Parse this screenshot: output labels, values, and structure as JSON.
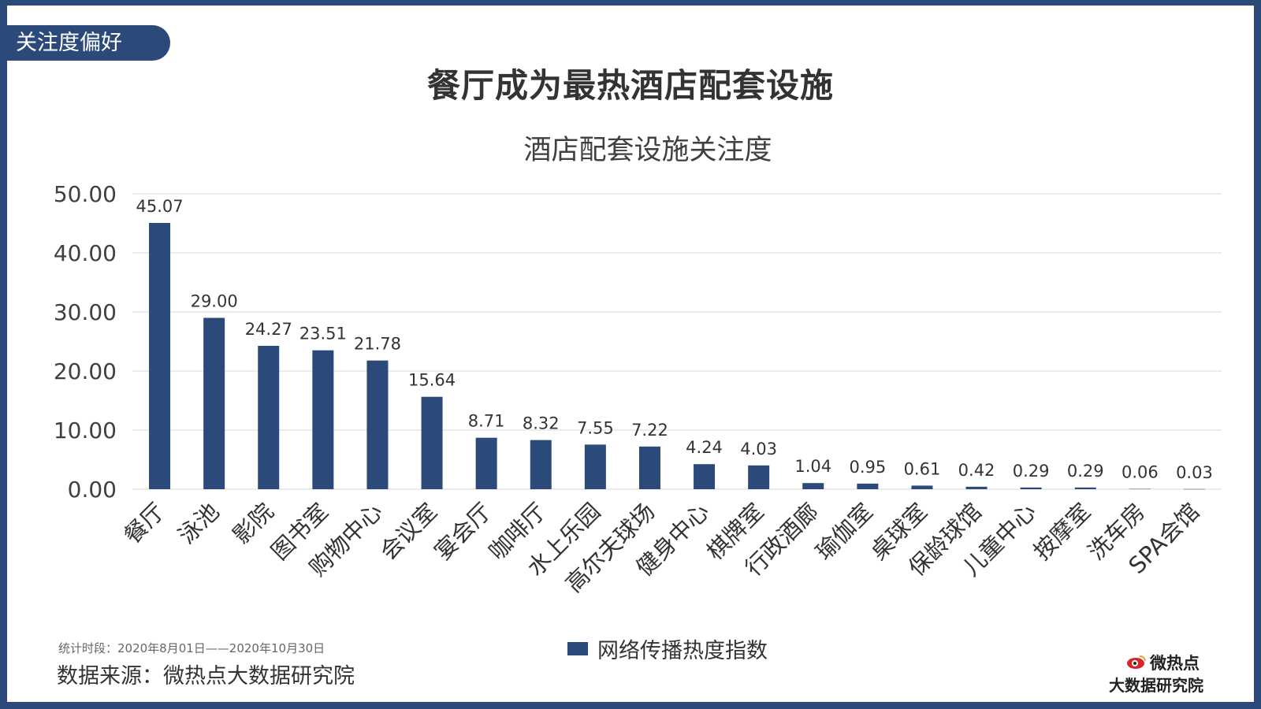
{
  "header": {
    "section_tag": "关注度偏好",
    "page_title": "餐厅成为最热酒店配套设施"
  },
  "footer": {
    "period": "统计时段：2020年8月01日——2020年10月30日",
    "source": "数据来源：微热点大数据研究院",
    "logo_top": "微热点",
    "logo_bottom": "大数据研究院"
  },
  "colors": {
    "accent": "#2b4a7a",
    "grid": "#d9d9d9",
    "text": "#333333",
    "logo_red": "#d6252b"
  },
  "chart_data": {
    "type": "bar",
    "title": "酒店配套设施关注度",
    "xlabel": "",
    "ylabel": "",
    "ylim": [
      0,
      50
    ],
    "yticks": [
      "0.00",
      "10.00",
      "20.00",
      "30.00",
      "40.00",
      "50.00"
    ],
    "grid": true,
    "legend_position": "bottom",
    "categories": [
      "餐厅",
      "泳池",
      "影院",
      "图书室",
      "购物中心",
      "会议室",
      "宴会厅",
      "咖啡厅",
      "水上乐园",
      "高尔夫球场",
      "健身中心",
      "棋牌室",
      "行政酒廊",
      "瑜伽室",
      "桌球室",
      "保龄球馆",
      "儿童中心",
      "按摩室",
      "洗车房",
      "SPA会馆"
    ],
    "series": [
      {
        "name": "网络传播热度指数",
        "values": [
          45.07,
          29.0,
          24.27,
          23.51,
          21.78,
          15.64,
          8.71,
          8.32,
          7.55,
          7.22,
          4.24,
          4.03,
          1.04,
          0.95,
          0.61,
          0.42,
          0.29,
          0.29,
          0.06,
          0.03
        ],
        "labels": [
          "45.07",
          "29.00",
          "24.27",
          "23.51",
          "21.78",
          "15.64",
          "8.71",
          "8.32",
          "7.55",
          "7.22",
          "4.24",
          "4.03",
          "1.04",
          "0.95",
          "0.61",
          "0.42",
          "0.29",
          "0.29",
          "0.06",
          "0.03"
        ]
      }
    ]
  }
}
